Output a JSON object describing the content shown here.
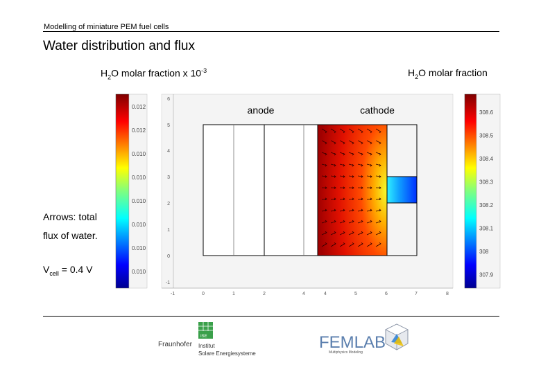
{
  "header": {
    "running_title": "Modelling of miniature PEM fuel cells",
    "slide_title": "Water distribution and flux"
  },
  "labels": {
    "left_colorbar_prefix": "H",
    "left_colorbar_sub": "2",
    "left_colorbar_mid": "O molar fraction x 10",
    "left_colorbar_sup": "-3",
    "right_colorbar_prefix": "H",
    "right_colorbar_sub": "2",
    "right_colorbar_mid": "O molar fraction",
    "anode": "anode",
    "cathode": "cathode"
  },
  "notes": {
    "line1": "Arrows: total",
    "line2": "flux of water.",
    "vcell_prefix": "V",
    "vcell_sub": "cell",
    "vcell_value": " = 0.4 V"
  },
  "left_colorbar_ticks": [
    "0.012",
    "0.012",
    "0.010",
    "0.010",
    "0.010",
    "0.010",
    "0.010",
    "0.010"
  ],
  "right_colorbar_ticks": [
    "308.6",
    "308.5",
    "308.4",
    "308.3",
    "308.2",
    "308.1",
    "308",
    "307.9"
  ],
  "plot": {
    "x_ticks": [
      "-1",
      "0",
      "1",
      "2",
      "4",
      "4",
      "5",
      "6",
      "7",
      "8"
    ],
    "y_ticks": [
      "6",
      "5",
      "4",
      "3",
      "2",
      "1",
      "0",
      "-1"
    ]
  },
  "footer": {
    "ise_logo_text": "ISE",
    "fraunhofer_name": "Fraunhofer",
    "institute_line1": "Institut",
    "institute_line2": "Solare Energiesysteme",
    "femlab_name": "FEMLAB",
    "femlab_tagline": "Multiphysics Modeling"
  },
  "colors": {
    "rule": "#000000",
    "ise_green": "#3aa04a",
    "femlab_blue": "#5b7fae"
  }
}
